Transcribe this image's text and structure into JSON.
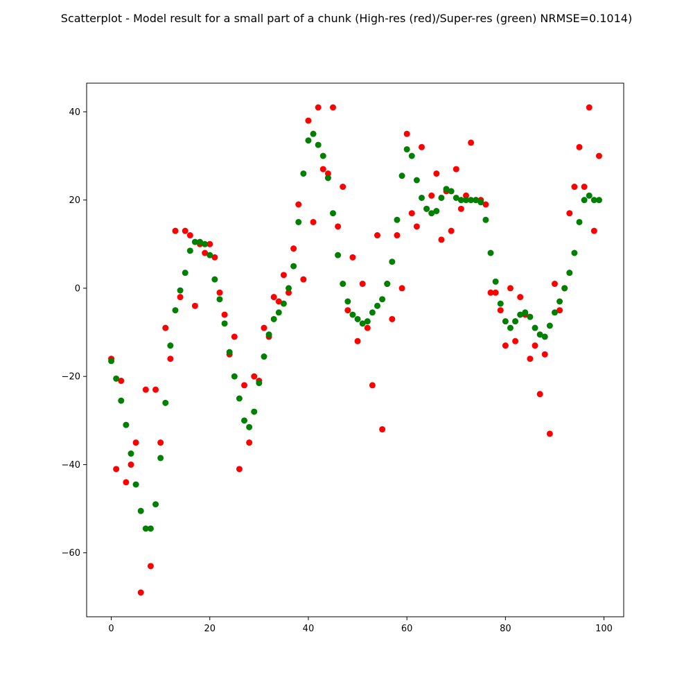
{
  "chart_data": {
    "type": "scatter",
    "title": "Scatterplot - Model result for a small part of a chunk (High-res (red)/Super-res (green) NRMSE=0.1014)",
    "xlabel": "",
    "ylabel": "",
    "xlim": [
      -5,
      104
    ],
    "ylim": [
      -74.5,
      46.5
    ],
    "x_ticks": [
      0,
      20,
      40,
      60,
      80,
      100
    ],
    "y_ticks": [
      -60,
      -40,
      -20,
      0,
      20,
      40
    ],
    "grid": false,
    "series": [
      {
        "color": "#ff0000",
        "x": [
          0,
          1,
          2,
          3,
          4,
          5,
          6,
          7,
          8,
          9,
          10,
          11,
          12,
          13,
          14,
          15,
          16,
          17,
          18,
          19,
          20,
          21,
          22,
          23,
          24,
          25,
          26,
          27,
          28,
          29,
          30,
          31,
          32,
          33,
          34,
          35,
          36,
          37,
          38,
          39,
          40,
          41,
          42,
          43,
          44,
          45,
          46,
          47,
          48,
          49,
          50,
          51,
          52,
          53,
          54,
          55,
          56,
          57,
          58,
          59,
          60,
          61,
          62,
          63,
          64,
          65,
          66,
          67,
          68,
          69,
          70,
          71,
          72,
          73,
          74,
          75,
          76,
          77,
          78,
          79,
          80,
          81,
          82,
          83,
          84,
          85,
          86,
          87,
          88,
          89,
          90,
          91,
          92,
          93,
          94,
          95,
          96,
          97,
          98,
          99
        ],
        "y": [
          -16,
          -41,
          -21,
          -44,
          -40,
          -35,
          -69,
          -23,
          -63,
          -23,
          -35,
          -9,
          -16,
          13,
          -2,
          13,
          12,
          -4,
          10,
          8,
          10,
          7,
          -1,
          -6,
          -15,
          -11,
          -41,
          -22,
          -35,
          -20,
          -21,
          -9,
          -11,
          -2,
          -3,
          3,
          -1,
          9,
          19,
          2,
          38,
          15,
          41,
          27,
          26,
          41,
          14,
          23,
          -5,
          7,
          -12,
          1,
          -9,
          -22,
          12,
          -32,
          1,
          -7,
          12,
          0,
          35,
          17,
          14,
          32,
          18,
          21,
          26,
          11,
          22,
          13,
          27,
          18,
          21,
          33,
          20,
          20,
          19,
          -1,
          -1,
          -5,
          -13,
          0,
          -12,
          -2,
          -6,
          -16,
          -13,
          -24,
          -15,
          -33,
          1,
          -5,
          0,
          17,
          23,
          32,
          23,
          41,
          13,
          30
        ]
      },
      {
        "color": "#008000",
        "x": [
          0,
          1,
          2,
          3,
          4,
          5,
          6,
          7,
          8,
          9,
          10,
          11,
          12,
          13,
          14,
          15,
          16,
          17,
          18,
          19,
          20,
          21,
          22,
          23,
          24,
          25,
          26,
          27,
          28,
          29,
          30,
          31,
          32,
          33,
          34,
          35,
          36,
          37,
          38,
          39,
          40,
          41,
          42,
          43,
          44,
          45,
          46,
          47,
          48,
          49,
          50,
          51,
          52,
          53,
          54,
          55,
          56,
          57,
          58,
          59,
          60,
          61,
          62,
          63,
          64,
          65,
          66,
          67,
          68,
          69,
          70,
          71,
          72,
          73,
          74,
          75,
          76,
          77,
          78,
          79,
          80,
          81,
          82,
          83,
          84,
          85,
          86,
          87,
          88,
          89,
          90,
          91,
          92,
          93,
          94,
          95,
          96,
          97,
          98,
          99
        ],
        "y": [
          -16.5,
          -20.5,
          -25.5,
          -31,
          -37.5,
          -44.5,
          -50.5,
          -54.5,
          -54.5,
          -49,
          -38.5,
          -26,
          -13,
          -5,
          -0.5,
          3.5,
          8.5,
          10.5,
          10.5,
          10,
          7.5,
          2,
          -2.5,
          -8,
          -14.5,
          -20,
          -25,
          -30,
          -31.5,
          -28,
          -21.5,
          -15.5,
          -10.5,
          -7,
          -5.5,
          -3.5,
          0,
          5,
          15,
          26,
          33.5,
          35,
          32.5,
          30,
          25,
          17,
          7.5,
          1,
          -3,
          -6,
          -7,
          -8,
          -7.5,
          -5.5,
          -4,
          -2.5,
          1,
          6,
          15.5,
          25.5,
          31.5,
          30,
          24.5,
          20.5,
          18,
          17,
          17.5,
          20.5,
          22.5,
          22,
          20.5,
          20,
          20,
          20,
          20,
          19.5,
          15.5,
          8,
          1.5,
          -3.5,
          -7.5,
          -9,
          -7.5,
          -6,
          -5.5,
          -6.5,
          -9,
          -10.5,
          -11,
          -8.5,
          -5.5,
          -3,
          0,
          3.5,
          8,
          15,
          20,
          21,
          20,
          20
        ]
      }
    ]
  }
}
